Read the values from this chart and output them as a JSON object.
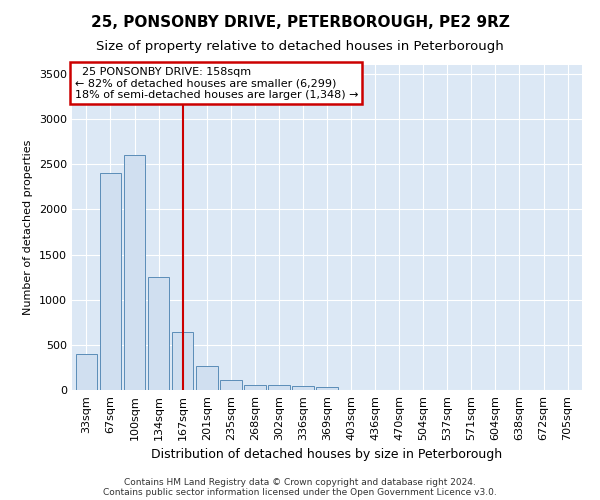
{
  "title": "25, PONSONBY DRIVE, PETERBOROUGH, PE2 9RZ",
  "subtitle": "Size of property relative to detached houses in Peterborough",
  "xlabel": "Distribution of detached houses by size in Peterborough",
  "ylabel": "Number of detached properties",
  "footer_line1": "Contains HM Land Registry data © Crown copyright and database right 2024.",
  "footer_line2": "Contains public sector information licensed under the Open Government Licence v3.0.",
  "categories": [
    "33sqm",
    "67sqm",
    "100sqm",
    "134sqm",
    "167sqm",
    "201sqm",
    "235sqm",
    "268sqm",
    "302sqm",
    "336sqm",
    "369sqm",
    "403sqm",
    "436sqm",
    "470sqm",
    "504sqm",
    "537sqm",
    "571sqm",
    "604sqm",
    "638sqm",
    "672sqm",
    "705sqm"
  ],
  "values": [
    400,
    2400,
    2600,
    1250,
    640,
    265,
    110,
    60,
    55,
    45,
    30,
    0,
    0,
    0,
    0,
    0,
    0,
    0,
    0,
    0,
    0
  ],
  "bar_color": "#d0dff0",
  "bar_edge_color": "#5b8db8",
  "red_line_x": 4.0,
  "annotation_line1": "25 PONSONBY DRIVE: 158sqm",
  "annotation_line2": "← 82% of detached houses are smaller (6,299)",
  "annotation_line3": "18% of semi-detached houses are larger (1,348) →",
  "ylim": [
    0,
    3600
  ],
  "yticks": [
    0,
    500,
    1000,
    1500,
    2000,
    2500,
    3000,
    3500
  ],
  "plot_bg_color": "#dce8f5",
  "title_fontsize": 11,
  "subtitle_fontsize": 9.5,
  "ylabel_fontsize": 8,
  "xlabel_fontsize": 9,
  "annotation_box_facecolor": "white",
  "annotation_box_edgecolor": "#cc0000",
  "footer_fontsize": 6.5,
  "tick_fontsize": 8,
  "grid_color": "white"
}
